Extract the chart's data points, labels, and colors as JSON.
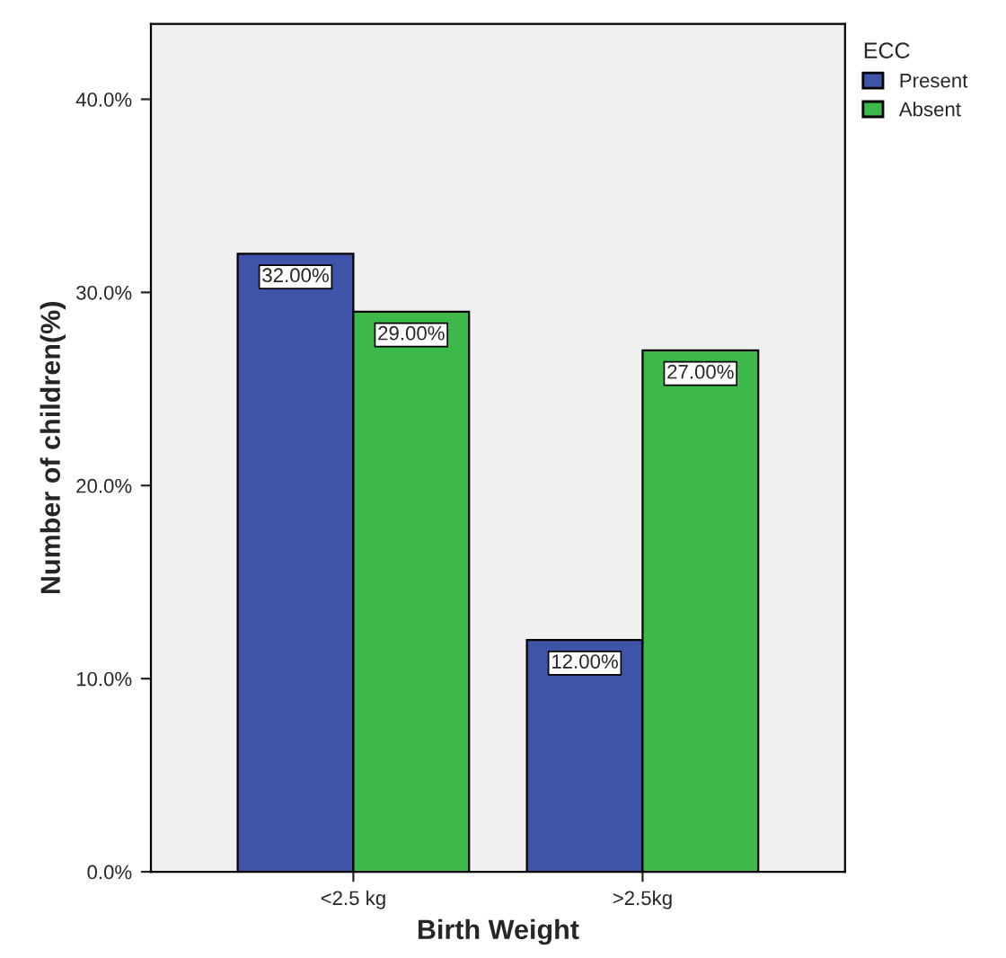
{
  "chart_data": {
    "type": "bar",
    "xlabel": "Birth Weight",
    "ylabel": "Number of children(%)",
    "legend_title": "ECC",
    "categories": [
      "<2.5 kg",
      ">2.5kg"
    ],
    "series": [
      {
        "name": "Present",
        "color": "#3f53a8",
        "values": [
          32,
          12
        ],
        "value_labels": [
          "32.00%",
          "12.00%"
        ]
      },
      {
        "name": "Absent",
        "color": "#3cb94a",
        "values": [
          29,
          27
        ],
        "value_labels": [
          "29.00%",
          "27.00%"
        ]
      }
    ],
    "ylim": [
      0,
      43.9
    ],
    "yticks": [
      {
        "value": 0,
        "label": "0.0%"
      },
      {
        "value": 10,
        "label": "10.0%"
      },
      {
        "value": 20,
        "label": "20.0%"
      },
      {
        "value": 30,
        "label": "30.0%"
      },
      {
        "value": 40,
        "label": "40.0%"
      }
    ],
    "grid": false,
    "legend": "top right"
  }
}
